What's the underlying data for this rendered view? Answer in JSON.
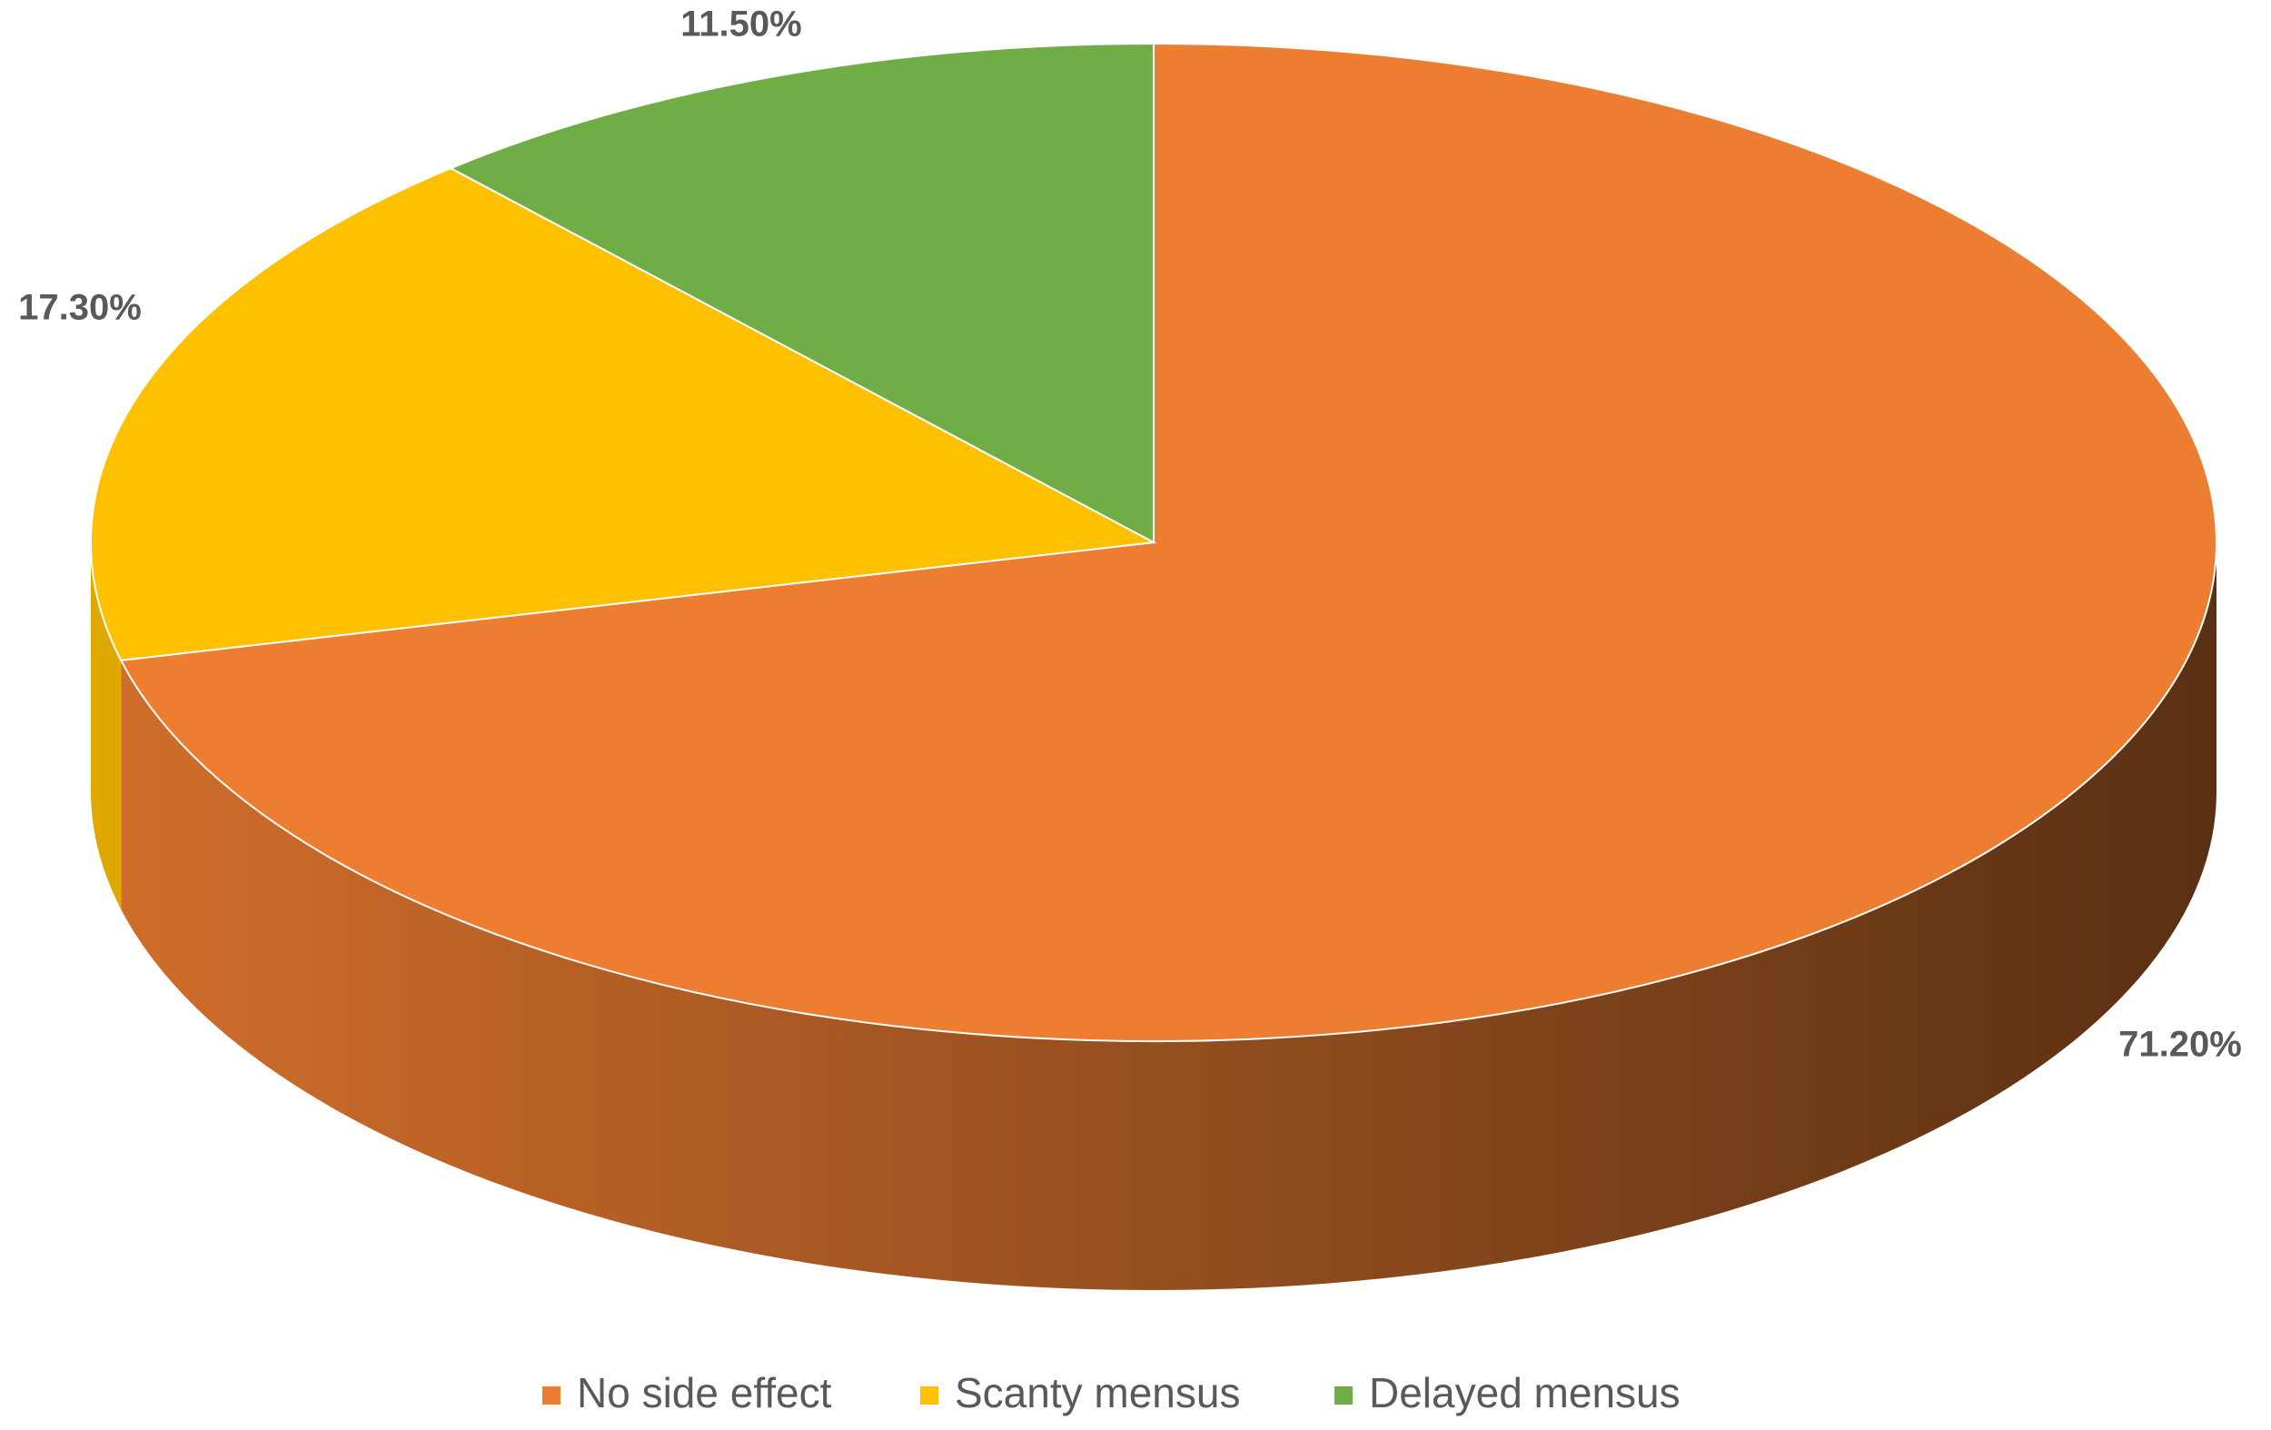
{
  "chart_data": {
    "type": "pie3d",
    "categories": [
      "No side effect",
      "Scanty mensus",
      "Delayed mensus"
    ],
    "values": [
      71.2,
      17.3,
      11.5
    ],
    "value_labels": [
      "71.20%",
      "17.30%",
      "11.50%"
    ],
    "colors": [
      "#ed7d31",
      "#ffc000",
      "#70ad47"
    ],
    "legend": "bottom"
  }
}
